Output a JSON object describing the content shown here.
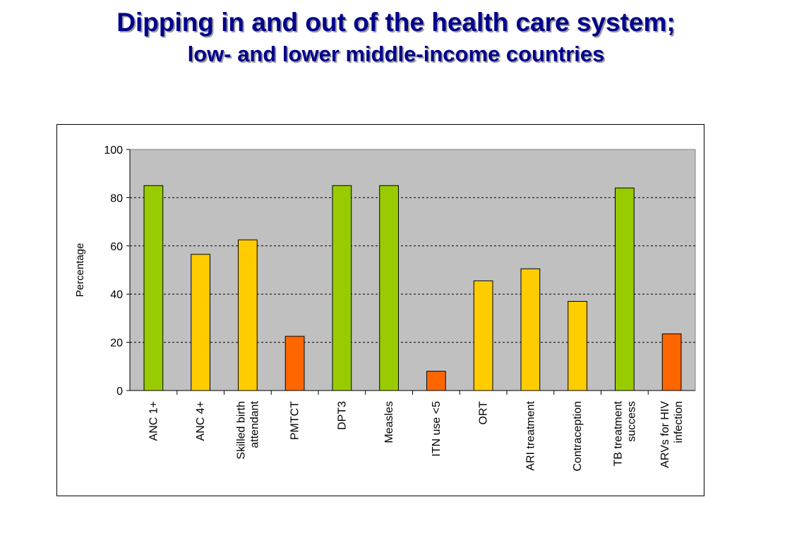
{
  "slide": {
    "title": "Dipping in and out of the health care system;",
    "subtitle": "low- and lower middle-income countries"
  },
  "colors": {
    "green": "#99cc00",
    "yellow": "#ffcc00",
    "orange": "#ff6600",
    "plot_background": "#c0c0c0"
  },
  "chart_data": {
    "type": "bar",
    "ylabel": "Percentage",
    "ylim": [
      0,
      100
    ],
    "yticks": [
      0,
      20,
      40,
      60,
      80,
      100
    ],
    "grid": true,
    "categories": [
      [
        "ANC 1+"
      ],
      [
        "ANC 4+"
      ],
      [
        "Skilled birth",
        "attendant"
      ],
      [
        "PMTCT"
      ],
      [
        "DPT3"
      ],
      [
        "Measles"
      ],
      [
        "ITN use <5"
      ],
      [
        "ORT"
      ],
      [
        "ARI treatment"
      ],
      [
        "Contraception"
      ],
      [
        "TB treatment",
        "success"
      ],
      [
        "ARVs for HIV",
        "infection"
      ]
    ],
    "values": [
      85,
      56.5,
      62.5,
      22.5,
      85,
      85,
      8,
      45.5,
      50.5,
      37,
      84,
      23.5
    ],
    "bar_colors": [
      "green",
      "yellow",
      "yellow",
      "orange",
      "green",
      "green",
      "orange",
      "yellow",
      "yellow",
      "yellow",
      "green",
      "orange"
    ]
  }
}
